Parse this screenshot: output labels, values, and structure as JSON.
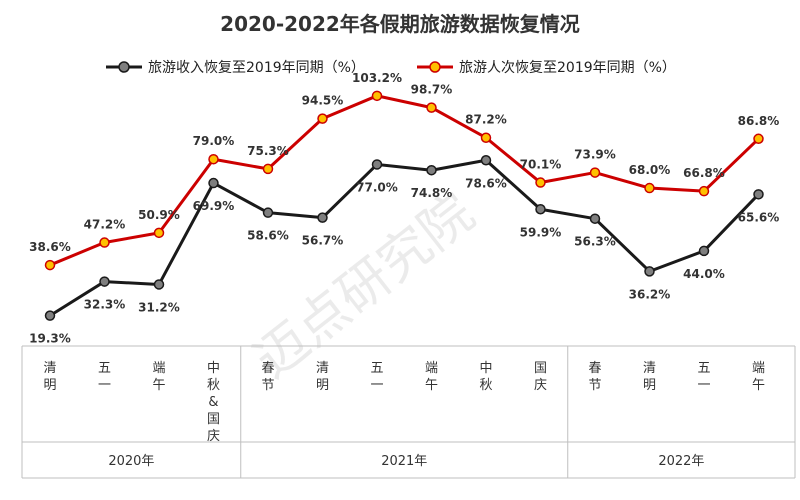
{
  "chart_data": {
    "type": "line",
    "title": "2020-2022年各假期旅游数据恢复情况",
    "watermark": "迈点研究院",
    "categories": [
      "清明",
      "五一",
      "端午",
      "中秋&国庆",
      "春节",
      "清明",
      "五一",
      "端午",
      "中秋",
      "国庆",
      "春节",
      "清明",
      "五一",
      "端午"
    ],
    "category_lines": [
      [
        "清",
        "明"
      ],
      [
        "五",
        "一"
      ],
      [
        "端",
        "午"
      ],
      [
        "中",
        "秋",
        "&",
        "国",
        "庆"
      ],
      [
        "春",
        "节"
      ],
      [
        "清",
        "明"
      ],
      [
        "五",
        "一"
      ],
      [
        "端",
        "午"
      ],
      [
        "中",
        "秋"
      ],
      [
        "国",
        "庆"
      ],
      [
        "春",
        "节"
      ],
      [
        "清",
        "明"
      ],
      [
        "五",
        "一"
      ],
      [
        "端",
        "午"
      ]
    ],
    "groups": [
      {
        "label": "2020年",
        "count": 4
      },
      {
        "label": "2021年",
        "count": 6
      },
      {
        "label": "2022年",
        "count": 4
      }
    ],
    "series": [
      {
        "name": "旅游收入恢复至2019年同期（%）",
        "line_color": "#1a1a1a",
        "marker_fill": "#7f7f7f",
        "values": [
          19.3,
          32.3,
          31.2,
          69.9,
          58.6,
          56.7,
          77.0,
          74.8,
          78.6,
          59.9,
          56.3,
          36.2,
          44.0,
          65.6
        ],
        "labels": [
          "19.3%",
          "32.3%",
          "31.2%",
          "69.9%",
          "58.6%",
          "56.7%",
          "77.0%",
          "74.8%",
          "78.6%",
          "59.9%",
          "56.3%",
          "36.2%",
          "44.0%",
          "65.6%"
        ],
        "label_pos": [
          "below",
          "below",
          "below",
          "below",
          "below",
          "below",
          "below",
          "below",
          "below",
          "below",
          "below",
          "below",
          "below",
          "below"
        ]
      },
      {
        "name": "旅游人次恢复至2019年同期（%）",
        "line_color": "#cc0000",
        "marker_fill": "#ffc000",
        "values": [
          38.6,
          47.2,
          50.9,
          79.0,
          75.3,
          94.5,
          103.2,
          98.7,
          87.2,
          70.1,
          73.9,
          68.0,
          66.8,
          86.8
        ],
        "labels": [
          "38.6%",
          "47.2%",
          "50.9%",
          "79.0%",
          "75.3%",
          "94.5%",
          "103.2%",
          "98.7%",
          "87.2%",
          "70.1%",
          "73.9%",
          "68.0%",
          "66.8%",
          "86.8%"
        ],
        "label_pos": [
          "above",
          "above",
          "above",
          "above",
          "above",
          "above",
          "above",
          "above",
          "above",
          "above",
          "above",
          "above",
          "above",
          "above"
        ]
      }
    ],
    "xlabel": "",
    "ylabel": "",
    "ylim": [
      10,
      110
    ],
    "grid": false,
    "legend": "top"
  }
}
